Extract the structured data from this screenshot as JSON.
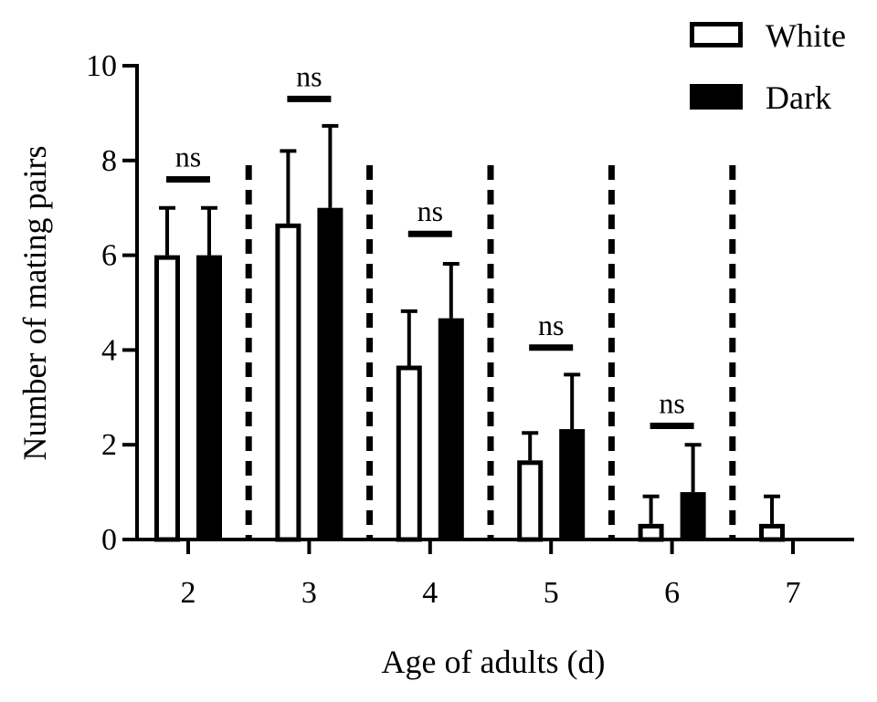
{
  "chart_data": {
    "type": "bar",
    "title": "",
    "xlabel": "Age of adults (d)",
    "ylabel": "Number of mating pairs",
    "ylim": [
      0,
      10
    ],
    "yticks": [
      0,
      2,
      4,
      6,
      8,
      10
    ],
    "categories": [
      "2",
      "3",
      "4",
      "5",
      "6",
      "7"
    ],
    "series": [
      {
        "name": "White",
        "fill": "#ffffff",
        "values": [
          6,
          6.67,
          3.67,
          1.67,
          0.33,
          0.33
        ],
        "error": [
          1.0,
          1.53,
          1.15,
          0.58,
          0.58,
          0.58
        ]
      },
      {
        "name": "Dark",
        "fill": "#000000",
        "values": [
          6,
          7,
          4.67,
          2.33,
          1,
          0
        ],
        "error": [
          1.0,
          1.73,
          1.15,
          1.15,
          1.0,
          0
        ]
      }
    ],
    "significance": [
      {
        "category": "2",
        "label": "ns",
        "y": 7.6
      },
      {
        "category": "3",
        "label": "ns",
        "y": 9.3
      },
      {
        "category": "4",
        "label": "ns",
        "y": 6.45
      },
      {
        "category": "5",
        "label": "ns",
        "y": 4.05
      },
      {
        "category": "6",
        "label": "ns",
        "y": 2.4
      }
    ],
    "legend_position": "top-right",
    "separators": "dashed vertical lines between age groups",
    "colors": {
      "axis": "#000000",
      "white_bar": "#ffffff",
      "dark_bar": "#000000"
    }
  }
}
